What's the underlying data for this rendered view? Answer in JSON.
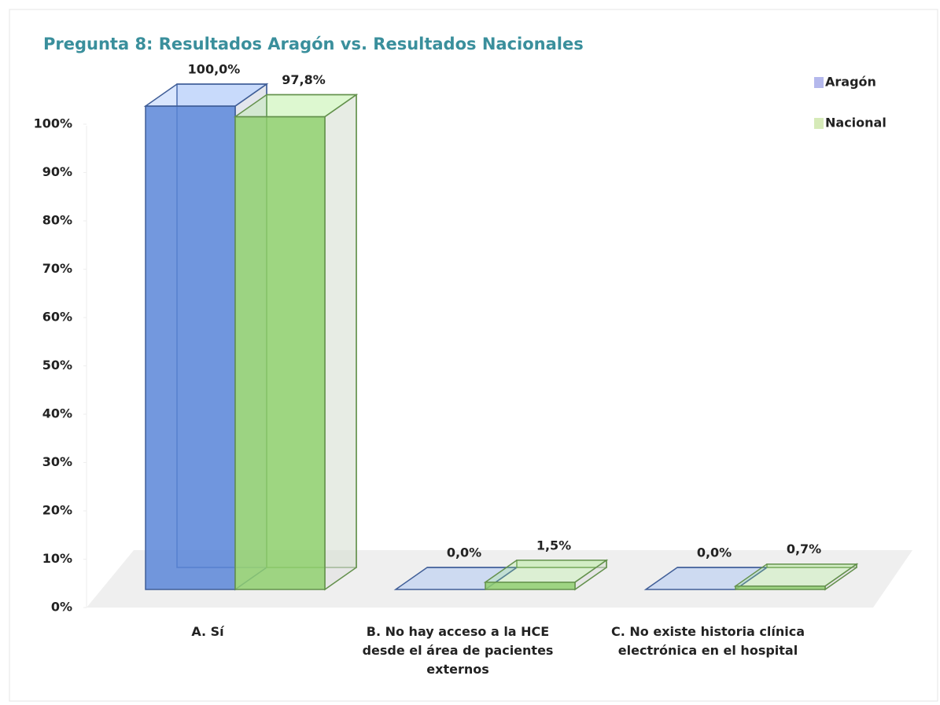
{
  "chart_data": {
    "type": "bar3d",
    "title": "Pregunta 8: Resultados Aragón vs. Resultados Nacionales",
    "categories": [
      "A. Sí",
      "B. No hay acceso a la HCE desde el área de pacientes externos",
      "C. No existe historia clínica electrónica en el hospital"
    ],
    "series": [
      {
        "name": "Aragón",
        "color": "#5b86d8",
        "values": [
          100,
          0,
          0
        ],
        "value_labels": [
          "100,0%",
          "0,0%",
          "0,0%"
        ]
      },
      {
        "name": "Nacional",
        "color": "#8fcf6e",
        "values": [
          97.8,
          1.5,
          0.7
        ],
        "value_labels": [
          "97,8%",
          "1,5%",
          "0,7%"
        ]
      }
    ],
    "ylim": [
      0,
      100
    ],
    "yticks": [
      {
        "value": 0,
        "label": "0%"
      },
      {
        "value": 10,
        "label": "10%"
      },
      {
        "value": 20,
        "label": "20%"
      },
      {
        "value": 30,
        "label": "30%"
      },
      {
        "value": 40,
        "label": "40%"
      },
      {
        "value": 50,
        "label": "50%"
      },
      {
        "value": 60,
        "label": "60%"
      },
      {
        "value": 70,
        "label": "70%"
      },
      {
        "value": 80,
        "label": "80%"
      },
      {
        "value": 90,
        "label": "90%"
      },
      {
        "value": 100,
        "label": "100%"
      }
    ],
    "legend": "top-right"
  }
}
